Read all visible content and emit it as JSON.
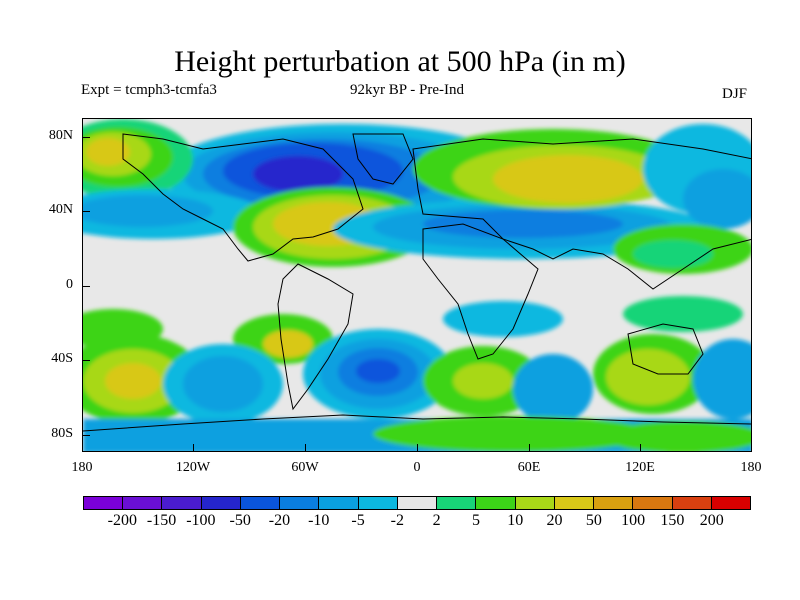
{
  "title": "Height perturbation at 500 hPa (in m)",
  "subtitle_left": "Expt = tcmph3-tcmfa3",
  "subtitle_mid": "92kyr BP - Pre-Ind",
  "subtitle_right": "DJF",
  "y_axis_labels": [
    "80N",
    "40N",
    "0",
    "40S",
    "80S"
  ],
  "x_axis_labels": [
    "180",
    "120W",
    "60W",
    "0",
    "60E",
    "120E",
    "180"
  ],
  "colorbar": {
    "colors": [
      "#7b00d8",
      "#6a0fd4",
      "#4a1ccf",
      "#2525cc",
      "#0a55dc",
      "#0a7ee0",
      "#0aa0e0",
      "#0cb8e0",
      "#e6e6e6",
      "#18d478",
      "#3cd418",
      "#a8d818",
      "#d8c818",
      "#d8a010",
      "#d87810",
      "#d84010",
      "#d80000"
    ],
    "labels": [
      "-200",
      "-150",
      "-100",
      "-50",
      "-20",
      "-10",
      "-5",
      "-2",
      "2",
      "5",
      "10",
      "20",
      "50",
      "100",
      "150",
      "200"
    ]
  }
}
